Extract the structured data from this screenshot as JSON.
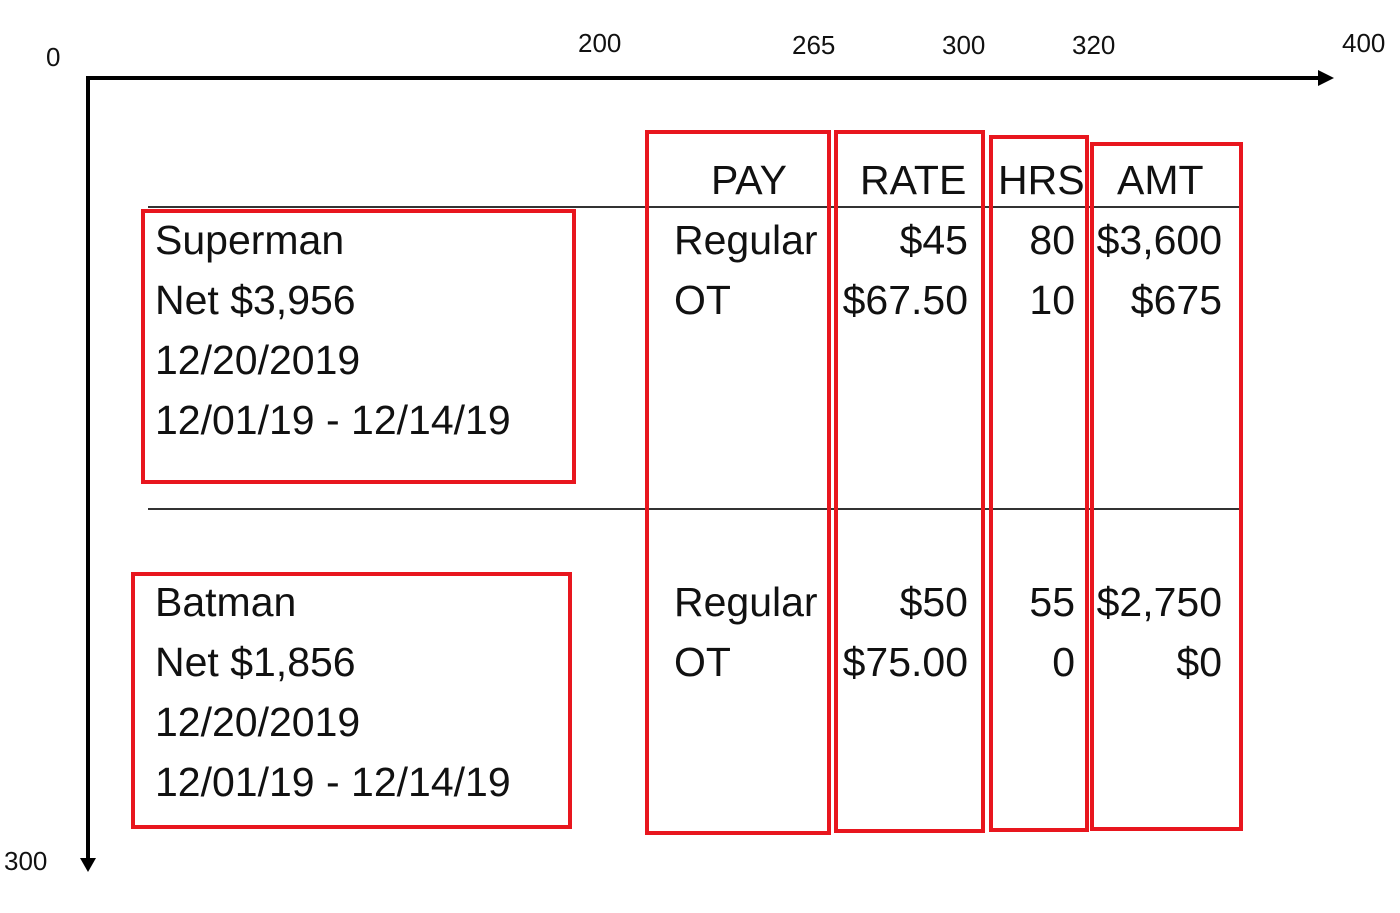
{
  "axis": {
    "x_ticks": [
      "0",
      "200",
      "265",
      "300",
      "320",
      "400"
    ],
    "y_bottom": "300"
  },
  "columns": {
    "pay": "PAY",
    "rate": "RATE",
    "hrs": "HRS",
    "amt": "AMT"
  },
  "records": [
    {
      "name": "Superman",
      "net": "Net $3,956",
      "date": "12/20/2019",
      "period": "12/01/19 - 12/14/19",
      "rows": [
        {
          "pay": "Regular",
          "rate": "$45",
          "hrs": "80",
          "amt": "$3,600"
        },
        {
          "pay": "OT",
          "rate": "$67.50",
          "hrs": "10",
          "amt": "$675"
        }
      ]
    },
    {
      "name": "Batman",
      "net": "Net $1,856",
      "date": "12/20/2019",
      "period": "12/01/19 - 12/14/19",
      "rows": [
        {
          "pay": "Regular",
          "rate": "$50",
          "hrs": "55",
          "amt": "$2,750"
        },
        {
          "pay": "OT",
          "rate": "$75.00",
          "hrs": "0",
          "amt": "$0"
        }
      ]
    }
  ],
  "colors": {
    "highlight": "#e8161e",
    "axis": "#000000"
  }
}
